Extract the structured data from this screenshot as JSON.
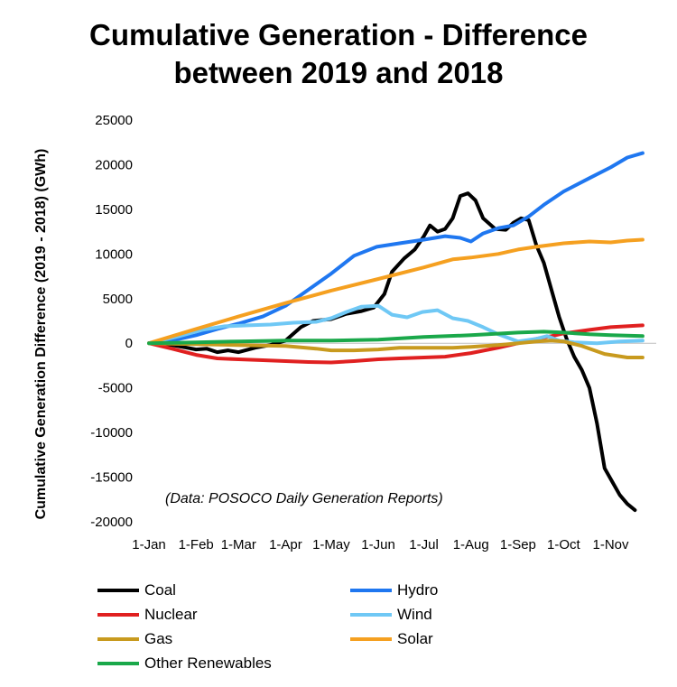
{
  "chart_data": {
    "type": "line",
    "title_lines": [
      "Cumulative Generation - Difference",
      "between 2019 and 2018"
    ],
    "ylabel": "Cumulative Generation Difference (2019 - 2018)  (GWh)",
    "xlabel": "",
    "ylim": [
      -20000,
      25000
    ],
    "yticks": [
      25000,
      20000,
      15000,
      10000,
      5000,
      0,
      -5000,
      -10000,
      -15000,
      -20000
    ],
    "ytick_labels": [
      "25000",
      "20000",
      "15000",
      "10000",
      "5000",
      "0",
      "-5000",
      "-10000",
      "-15000",
      "-20000"
    ],
    "xlim": [
      0,
      334
    ],
    "xticks": [
      {
        "label": "1-Jan",
        "day": 0
      },
      {
        "label": "1-Feb",
        "day": 31
      },
      {
        "label": "1-Mar",
        "day": 59
      },
      {
        "label": "1-Apr",
        "day": 90
      },
      {
        "label": "1-May",
        "day": 120
      },
      {
        "label": "1-Jun",
        "day": 151
      },
      {
        "label": "1-Jul",
        "day": 181
      },
      {
        "label": "1-Aug",
        "day": 212
      },
      {
        "label": "1-Sep",
        "day": 243
      },
      {
        "label": "1-Oct",
        "day": 273
      },
      {
        "label": "1-Nov",
        "day": 304
      }
    ],
    "annotation": "(Data: POSOCO Daily Generation Reports)",
    "grid": false,
    "legend_position": "bottom",
    "series": [
      {
        "name": "Coal",
        "color": "#000000",
        "points": [
          [
            0,
            0
          ],
          [
            15,
            -200
          ],
          [
            25,
            -500
          ],
          [
            31,
            -700
          ],
          [
            38,
            -600
          ],
          [
            45,
            -1000
          ],
          [
            52,
            -800
          ],
          [
            59,
            -1000
          ],
          [
            70,
            -500
          ],
          [
            80,
            -200
          ],
          [
            90,
            300
          ],
          [
            100,
            1800
          ],
          [
            108,
            2500
          ],
          [
            120,
            2700
          ],
          [
            130,
            3300
          ],
          [
            140,
            3600
          ],
          [
            148,
            4000
          ],
          [
            155,
            5500
          ],
          [
            160,
            8000
          ],
          [
            168,
            9500
          ],
          [
            175,
            10500
          ],
          [
            181,
            12000
          ],
          [
            185,
            13200
          ],
          [
            190,
            12500
          ],
          [
            195,
            12800
          ],
          [
            200,
            14000
          ],
          [
            205,
            16500
          ],
          [
            210,
            16800
          ],
          [
            215,
            16000
          ],
          [
            220,
            14000
          ],
          [
            228,
            12800
          ],
          [
            235,
            12700
          ],
          [
            240,
            13500
          ],
          [
            245,
            14000
          ],
          [
            250,
            13800
          ],
          [
            255,
            11000
          ],
          [
            260,
            9000
          ],
          [
            265,
            6000
          ],
          [
            270,
            3000
          ],
          [
            275,
            500
          ],
          [
            280,
            -1500
          ],
          [
            285,
            -3000
          ],
          [
            290,
            -5000
          ],
          [
            295,
            -9000
          ],
          [
            300,
            -14000
          ],
          [
            305,
            -15500
          ],
          [
            310,
            -17000
          ],
          [
            315,
            -18000
          ],
          [
            320,
            -18700
          ]
        ]
      },
      {
        "name": "Hydro",
        "color": "#1f77f0",
        "points": [
          [
            0,
            0
          ],
          [
            15,
            300
          ],
          [
            31,
            900
          ],
          [
            45,
            1600
          ],
          [
            59,
            2200
          ],
          [
            75,
            3000
          ],
          [
            90,
            4200
          ],
          [
            105,
            6000
          ],
          [
            120,
            7800
          ],
          [
            135,
            9800
          ],
          [
            150,
            10800
          ],
          [
            165,
            11200
          ],
          [
            181,
            11600
          ],
          [
            195,
            12000
          ],
          [
            205,
            11800
          ],
          [
            212,
            11400
          ],
          [
            220,
            12300
          ],
          [
            230,
            12900
          ],
          [
            240,
            13200
          ],
          [
            250,
            14200
          ],
          [
            260,
            15500
          ],
          [
            273,
            17000
          ],
          [
            290,
            18500
          ],
          [
            304,
            19700
          ],
          [
            315,
            20800
          ],
          [
            325,
            21300
          ]
        ]
      },
      {
        "name": "Nuclear",
        "color": "#e02020",
        "points": [
          [
            0,
            0
          ],
          [
            15,
            -600
          ],
          [
            31,
            -1300
          ],
          [
            45,
            -1700
          ],
          [
            59,
            -1800
          ],
          [
            75,
            -1900
          ],
          [
            90,
            -2000
          ],
          [
            105,
            -2100
          ],
          [
            120,
            -2150
          ],
          [
            135,
            -2000
          ],
          [
            151,
            -1800
          ],
          [
            165,
            -1700
          ],
          [
            181,
            -1600
          ],
          [
            195,
            -1500
          ],
          [
            212,
            -1100
          ],
          [
            230,
            -500
          ],
          [
            243,
            0
          ],
          [
            255,
            500
          ],
          [
            265,
            800
          ],
          [
            273,
            1100
          ],
          [
            290,
            1500
          ],
          [
            304,
            1800
          ],
          [
            325,
            2000
          ]
        ]
      },
      {
        "name": "Wind",
        "color": "#6fc8f5",
        "points": [
          [
            0,
            0
          ],
          [
            20,
            800
          ],
          [
            35,
            1500
          ],
          [
            50,
            1900
          ],
          [
            65,
            2000
          ],
          [
            80,
            2100
          ],
          [
            95,
            2300
          ],
          [
            110,
            2400
          ],
          [
            120,
            2800
          ],
          [
            130,
            3500
          ],
          [
            140,
            4100
          ],
          [
            151,
            4200
          ],
          [
            160,
            3200
          ],
          [
            170,
            2900
          ],
          [
            180,
            3500
          ],
          [
            190,
            3700
          ],
          [
            200,
            2800
          ],
          [
            210,
            2500
          ],
          [
            220,
            1800
          ],
          [
            230,
            1000
          ],
          [
            243,
            200
          ],
          [
            255,
            500
          ],
          [
            262,
            800
          ],
          [
            270,
            300
          ],
          [
            280,
            100
          ],
          [
            295,
            0
          ],
          [
            310,
            200
          ],
          [
            325,
            300
          ]
        ]
      },
      {
        "name": "Gas",
        "color": "#c89a1e",
        "points": [
          [
            0,
            0
          ],
          [
            31,
            -100
          ],
          [
            59,
            -200
          ],
          [
            90,
            -300
          ],
          [
            110,
            -600
          ],
          [
            120,
            -800
          ],
          [
            135,
            -800
          ],
          [
            151,
            -700
          ],
          [
            165,
            -500
          ],
          [
            181,
            -500
          ],
          [
            200,
            -500
          ],
          [
            212,
            -400
          ],
          [
            230,
            -200
          ],
          [
            243,
            0
          ],
          [
            255,
            200
          ],
          [
            265,
            300
          ],
          [
            273,
            200
          ],
          [
            285,
            -300
          ],
          [
            300,
            -1200
          ],
          [
            315,
            -1600
          ],
          [
            325,
            -1600
          ]
        ]
      },
      {
        "name": "Solar",
        "color": "#f5a020",
        "points": [
          [
            0,
            0
          ],
          [
            31,
            1600
          ],
          [
            59,
            3000
          ],
          [
            90,
            4500
          ],
          [
            120,
            5900
          ],
          [
            151,
            7200
          ],
          [
            181,
            8500
          ],
          [
            200,
            9400
          ],
          [
            212,
            9600
          ],
          [
            230,
            10000
          ],
          [
            243,
            10500
          ],
          [
            255,
            10800
          ],
          [
            273,
            11200
          ],
          [
            290,
            11400
          ],
          [
            304,
            11300
          ],
          [
            315,
            11500
          ],
          [
            325,
            11600
          ]
        ]
      },
      {
        "name": "Other Renewables",
        "color": "#1aa84a",
        "points": [
          [
            0,
            0
          ],
          [
            31,
            100
          ],
          [
            59,
            200
          ],
          [
            90,
            300
          ],
          [
            120,
            300
          ],
          [
            151,
            400
          ],
          [
            181,
            700
          ],
          [
            212,
            900
          ],
          [
            243,
            1200
          ],
          [
            260,
            1300
          ],
          [
            273,
            1200
          ],
          [
            290,
            1000
          ],
          [
            304,
            900
          ],
          [
            325,
            800
          ]
        ]
      }
    ]
  }
}
